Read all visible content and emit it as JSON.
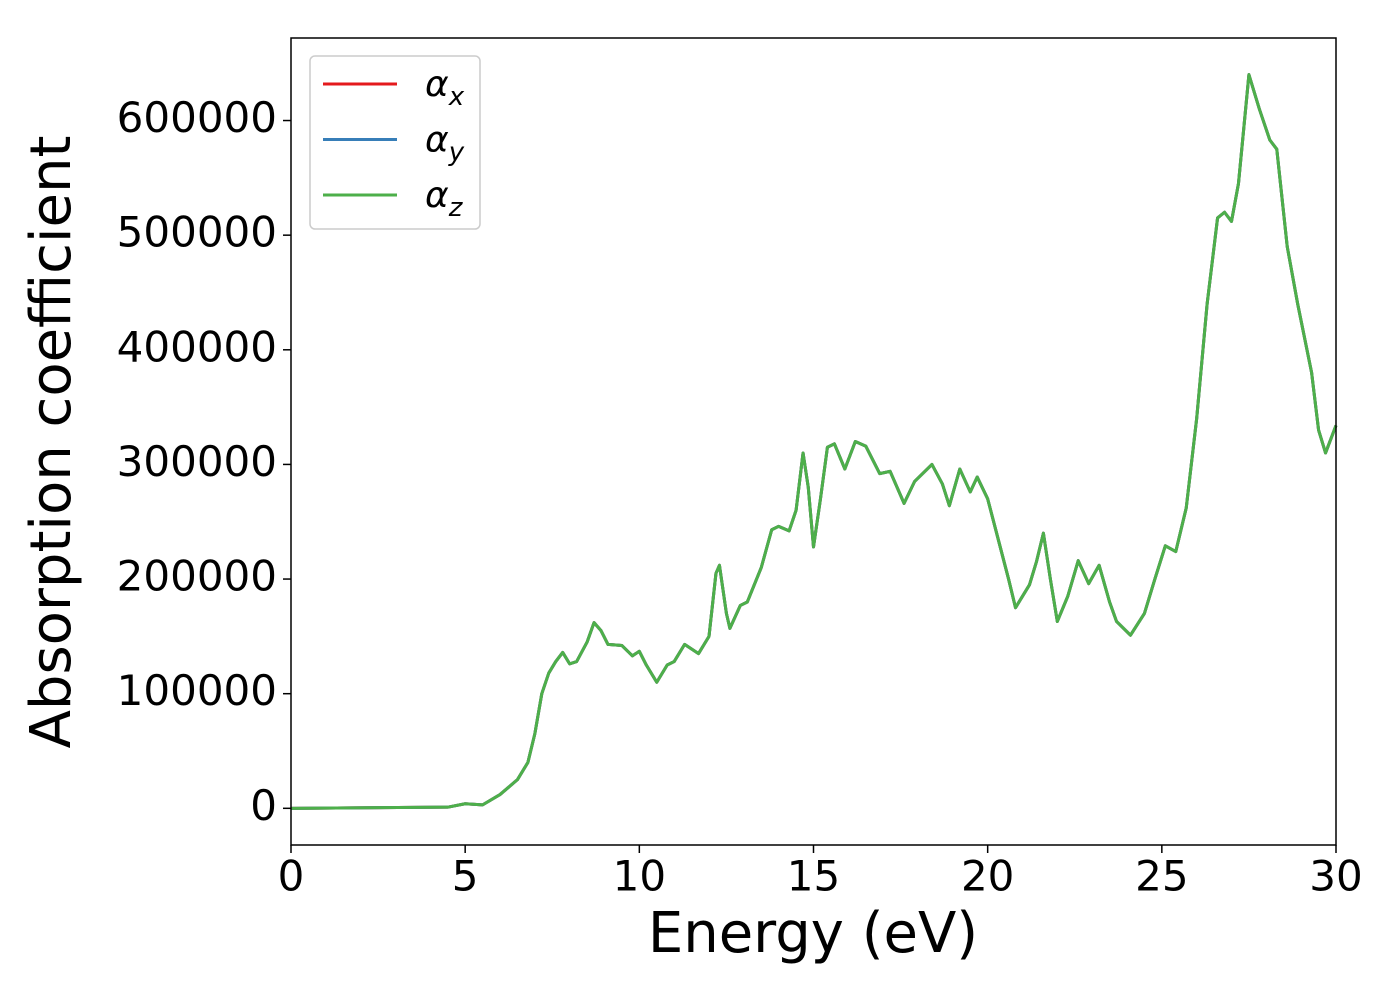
{
  "chart_data": {
    "type": "line",
    "xlabel": "Energy (eV)",
    "ylabel": "Absorption coefficient",
    "x": [
      0,
      4.5,
      5,
      5.5,
      6,
      6.5,
      6.8,
      7.0,
      7.2,
      7.4,
      7.6,
      7.8,
      8.0,
      8.2,
      8.5,
      8.7,
      8.9,
      9.1,
      9.5,
      9.8,
      10.0,
      10.2,
      10.5,
      10.8,
      11.0,
      11.3,
      11.7,
      12.0,
      12.2,
      12.3,
      12.5,
      12.6,
      12.9,
      13.1,
      13.5,
      13.8,
      14.0,
      14.3,
      14.5,
      14.7,
      14.85,
      15.0,
      15.2,
      15.4,
      15.6,
      15.9,
      16.2,
      16.5,
      16.9,
      17.2,
      17.6,
      17.9,
      18.4,
      18.7,
      18.9,
      19.2,
      19.5,
      19.7,
      20.0,
      20.3,
      20.6,
      20.8,
      21.2,
      21.4,
      21.6,
      21.8,
      22.0,
      22.3,
      22.6,
      22.9,
      23.2,
      23.5,
      23.7,
      24.1,
      24.5,
      24.8,
      25.1,
      25.4,
      25.7,
      26.0,
      26.3,
      26.6,
      26.8,
      27.0,
      27.2,
      27.5,
      27.8,
      28.1,
      28.3,
      28.6,
      28.9,
      29.3,
      29.5,
      29.7,
      30.0
    ],
    "series": [
      {
        "name": "αx",
        "color": "#e41a1c",
        "values": [
          0,
          1000,
          4000,
          3000,
          12000,
          25000,
          40000,
          65000,
          100000,
          118000,
          128000,
          136000,
          126000,
          128000,
          145000,
          162000,
          155000,
          143000,
          142000,
          133000,
          137000,
          125000,
          110000,
          125000,
          128000,
          143000,
          135000,
          150000,
          205000,
          212000,
          170000,
          157000,
          177000,
          180000,
          210000,
          243000,
          246000,
          242000,
          260000,
          310000,
          280000,
          228000,
          270000,
          315000,
          318000,
          296000,
          320000,
          316000,
          292000,
          294000,
          266000,
          285000,
          300000,
          283000,
          264000,
          296000,
          276000,
          289000,
          270000,
          235000,
          200000,
          175000,
          195000,
          215000,
          240000,
          200000,
          163000,
          185000,
          216000,
          196000,
          212000,
          180000,
          163000,
          151000,
          170000,
          200000,
          229000,
          224000,
          262000,
          340000,
          440000,
          515000,
          520000,
          512000,
          545000,
          640000,
          610000,
          583000,
          575000,
          490000,
          440000,
          380000,
          330000,
          310000,
          334000
        ]
      },
      {
        "name": "αy",
        "color": "#377eb8",
        "values": [
          0,
          1000,
          4000,
          3000,
          12000,
          25000,
          40000,
          65000,
          100000,
          118000,
          128000,
          136000,
          126000,
          128000,
          145000,
          162000,
          155000,
          143000,
          142000,
          133000,
          137000,
          125000,
          110000,
          125000,
          128000,
          143000,
          135000,
          150000,
          205000,
          212000,
          170000,
          157000,
          177000,
          180000,
          210000,
          243000,
          246000,
          242000,
          260000,
          310000,
          280000,
          228000,
          270000,
          315000,
          318000,
          296000,
          320000,
          316000,
          292000,
          294000,
          266000,
          285000,
          300000,
          283000,
          264000,
          296000,
          276000,
          289000,
          270000,
          235000,
          200000,
          175000,
          195000,
          215000,
          240000,
          200000,
          163000,
          185000,
          216000,
          196000,
          212000,
          180000,
          163000,
          151000,
          170000,
          200000,
          229000,
          224000,
          262000,
          340000,
          440000,
          515000,
          520000,
          512000,
          545000,
          640000,
          610000,
          583000,
          575000,
          490000,
          440000,
          380000,
          330000,
          310000,
          334000
        ]
      },
      {
        "name": "αz",
        "color": "#4daf4a",
        "values": [
          0,
          1000,
          4000,
          3000,
          12000,
          25000,
          40000,
          65000,
          100000,
          118000,
          128000,
          136000,
          126000,
          128000,
          145000,
          162000,
          155000,
          143000,
          142000,
          133000,
          137000,
          125000,
          110000,
          125000,
          128000,
          143000,
          135000,
          150000,
          205000,
          212000,
          170000,
          157000,
          177000,
          180000,
          210000,
          243000,
          246000,
          242000,
          260000,
          310000,
          280000,
          228000,
          270000,
          315000,
          318000,
          296000,
          320000,
          316000,
          292000,
          294000,
          266000,
          285000,
          300000,
          283000,
          264000,
          296000,
          276000,
          289000,
          270000,
          235000,
          200000,
          175000,
          195000,
          215000,
          240000,
          200000,
          163000,
          185000,
          216000,
          196000,
          212000,
          180000,
          163000,
          151000,
          170000,
          200000,
          229000,
          224000,
          262000,
          340000,
          440000,
          515000,
          520000,
          512000,
          545000,
          640000,
          610000,
          583000,
          575000,
          490000,
          440000,
          380000,
          330000,
          310000,
          334000
        ]
      }
    ],
    "xlim": [
      0,
      30
    ],
    "xticks": [
      0,
      5,
      10,
      15,
      20,
      25,
      30
    ],
    "ylim": [
      -32000,
      672000
    ],
    "yticks": [
      0,
      100000,
      200000,
      300000,
      400000,
      500000,
      600000
    ],
    "grid": false,
    "legend": "upper left"
  }
}
